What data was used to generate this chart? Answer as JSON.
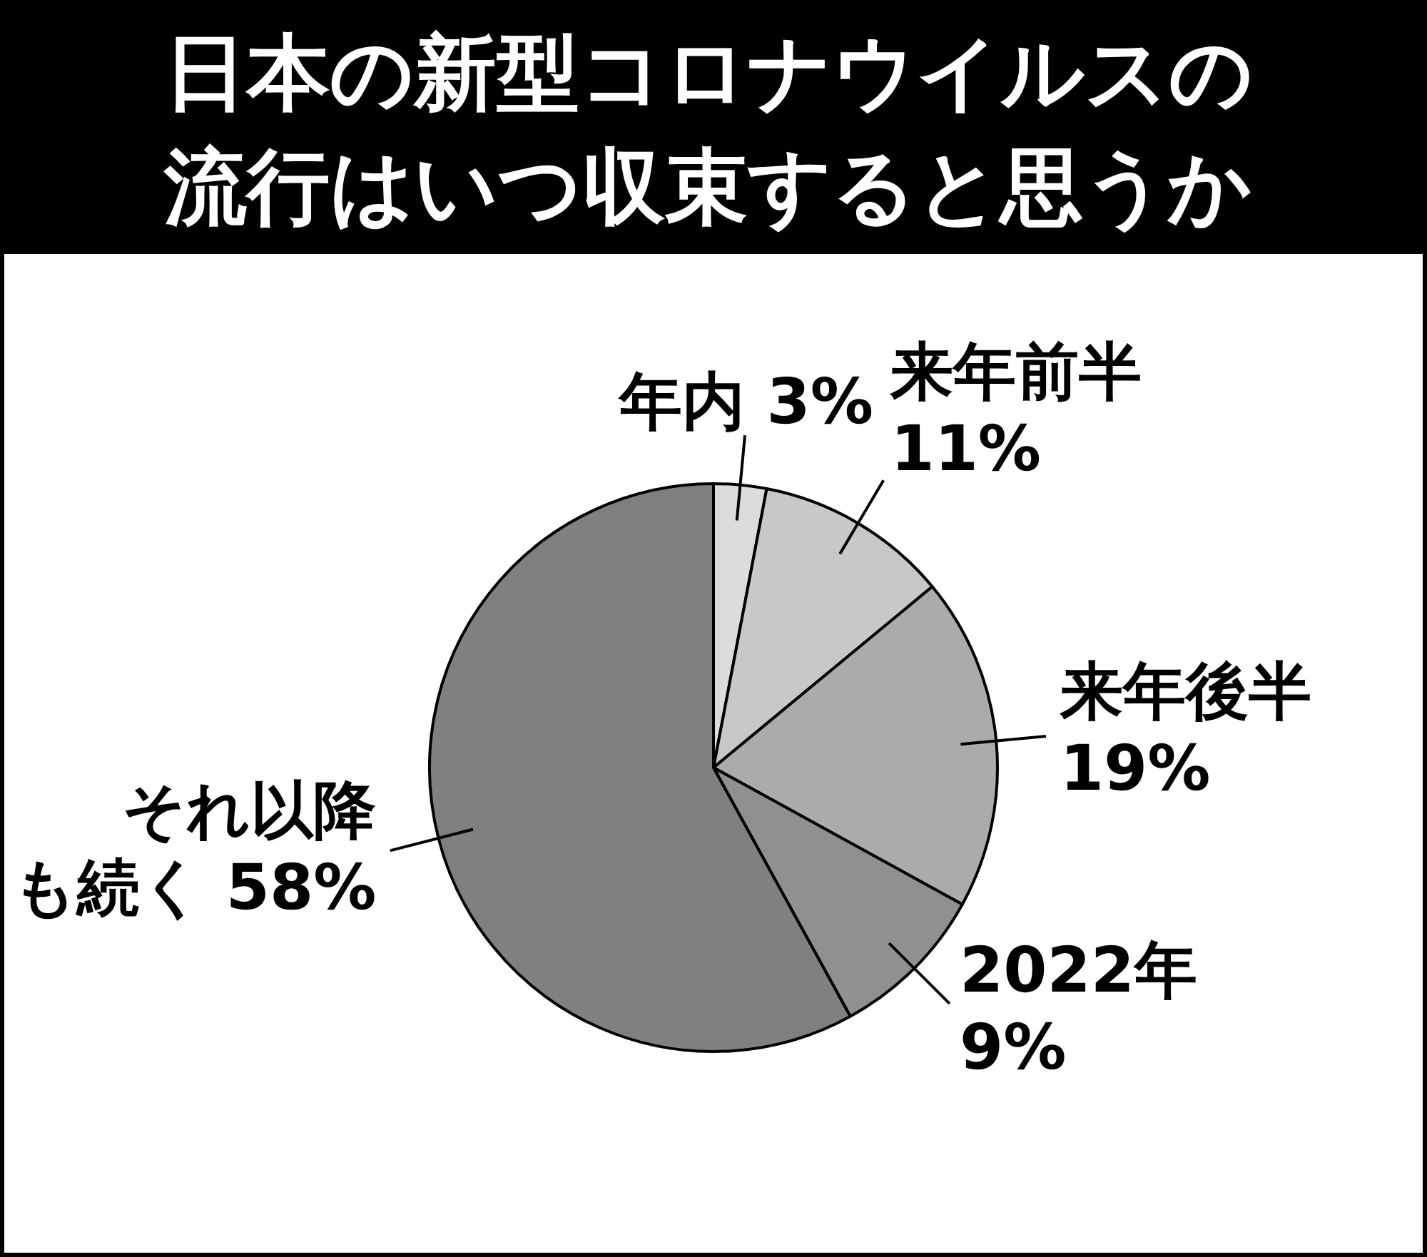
{
  "chart_data": {
    "type": "pie",
    "title": "日本の新型コロナウイルスの流行はいつ収束すると思うか",
    "categories": [
      "年内",
      "来年前半",
      "来年後半",
      "2022年",
      "それ以降も続く"
    ],
    "values": [
      3,
      11,
      19,
      9,
      58
    ],
    "value_labels": [
      "3%",
      "11%",
      "19%",
      "9%",
      "58%"
    ],
    "colors": [
      "#dcdcdc",
      "#c8c8c8",
      "#ababab",
      "#909090",
      "#808080"
    ],
    "legend": false
  }
}
